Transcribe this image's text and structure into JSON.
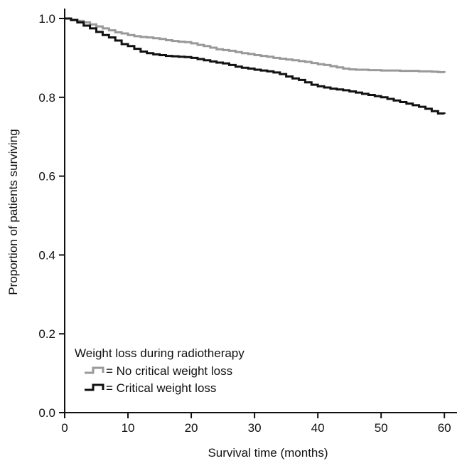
{
  "chart_data": {
    "type": "line",
    "title": "",
    "xlabel": "Survival time (months)",
    "ylabel": "Proportion of patients surviving",
    "xlim": [
      0,
      62
    ],
    "ylim": [
      0,
      1.0
    ],
    "x_ticks": [
      0,
      10,
      20,
      30,
      40,
      50,
      60
    ],
    "y_ticks": [
      0.0,
      0.2,
      0.4,
      0.6,
      0.8,
      1.0
    ],
    "x_tick_labels": [
      "0",
      "10",
      "20",
      "30",
      "40",
      "50",
      "60"
    ],
    "y_tick_labels": [
      "0.0",
      "0.2",
      "0.4",
      "0.6",
      "0.8",
      "1.0"
    ],
    "grid": false,
    "legend": {
      "title": "Weight loss during radiotherapy",
      "placement": "bottom-left"
    },
    "series": [
      {
        "name": "No critical weight loss",
        "legend_label": "= No critical weight loss",
        "color": "#999999",
        "step": true,
        "points": [
          [
            0,
            1.0
          ],
          [
            1,
            0.997
          ],
          [
            2,
            0.994
          ],
          [
            3,
            0.99
          ],
          [
            4,
            0.985
          ],
          [
            5,
            0.98
          ],
          [
            6,
            0.975
          ],
          [
            7,
            0.97
          ],
          [
            8,
            0.965
          ],
          [
            9,
            0.962
          ],
          [
            10,
            0.958
          ],
          [
            11,
            0.955
          ],
          [
            12,
            0.953
          ],
          [
            13,
            0.952
          ],
          [
            14,
            0.95
          ],
          [
            15,
            0.948
          ],
          [
            16,
            0.945
          ],
          [
            17,
            0.943
          ],
          [
            18,
            0.941
          ],
          [
            19,
            0.94
          ],
          [
            20,
            0.937
          ],
          [
            21,
            0.933
          ],
          [
            22,
            0.93
          ],
          [
            23,
            0.926
          ],
          [
            24,
            0.922
          ],
          [
            25,
            0.92
          ],
          [
            26,
            0.918
          ],
          [
            27,
            0.915
          ],
          [
            28,
            0.912
          ],
          [
            29,
            0.91
          ],
          [
            30,
            0.907
          ],
          [
            31,
            0.905
          ],
          [
            32,
            0.903
          ],
          [
            33,
            0.9
          ],
          [
            34,
            0.898
          ],
          [
            35,
            0.896
          ],
          [
            36,
            0.894
          ],
          [
            37,
            0.892
          ],
          [
            38,
            0.89
          ],
          [
            39,
            0.887
          ],
          [
            40,
            0.884
          ],
          [
            41,
            0.882
          ],
          [
            42,
            0.879
          ],
          [
            43,
            0.876
          ],
          [
            44,
            0.873
          ],
          [
            45,
            0.871
          ],
          [
            46,
            0.87
          ],
          [
            47,
            0.87
          ],
          [
            48,
            0.869
          ],
          [
            49,
            0.869
          ],
          [
            50,
            0.868
          ],
          [
            51,
            0.868
          ],
          [
            52,
            0.868
          ],
          [
            53,
            0.867
          ],
          [
            54,
            0.867
          ],
          [
            55,
            0.867
          ],
          [
            56,
            0.866
          ],
          [
            57,
            0.866
          ],
          [
            58,
            0.865
          ],
          [
            59,
            0.864
          ],
          [
            60,
            0.862
          ]
        ]
      },
      {
        "name": "Critical weight loss",
        "legend_label": "= Critical weight loss",
        "color": "#111111",
        "step": true,
        "points": [
          [
            0,
            1.0
          ],
          [
            1,
            0.996
          ],
          [
            2,
            0.99
          ],
          [
            3,
            0.982
          ],
          [
            4,
            0.975
          ],
          [
            5,
            0.966
          ],
          [
            6,
            0.958
          ],
          [
            7,
            0.952
          ],
          [
            8,
            0.944
          ],
          [
            9,
            0.935
          ],
          [
            10,
            0.93
          ],
          [
            11,
            0.923
          ],
          [
            12,
            0.916
          ],
          [
            13,
            0.912
          ],
          [
            14,
            0.909
          ],
          [
            15,
            0.907
          ],
          [
            16,
            0.905
          ],
          [
            17,
            0.904
          ],
          [
            18,
            0.903
          ],
          [
            19,
            0.902
          ],
          [
            20,
            0.9
          ],
          [
            21,
            0.897
          ],
          [
            22,
            0.894
          ],
          [
            23,
            0.891
          ],
          [
            24,
            0.888
          ],
          [
            25,
            0.886
          ],
          [
            26,
            0.882
          ],
          [
            27,
            0.878
          ],
          [
            28,
            0.875
          ],
          [
            29,
            0.873
          ],
          [
            30,
            0.87
          ],
          [
            31,
            0.868
          ],
          [
            32,
            0.866
          ],
          [
            33,
            0.863
          ],
          [
            34,
            0.859
          ],
          [
            35,
            0.853
          ],
          [
            36,
            0.848
          ],
          [
            37,
            0.844
          ],
          [
            38,
            0.838
          ],
          [
            39,
            0.832
          ],
          [
            40,
            0.828
          ],
          [
            41,
            0.825
          ],
          [
            42,
            0.822
          ],
          [
            43,
            0.82
          ],
          [
            44,
            0.818
          ],
          [
            45,
            0.815
          ],
          [
            46,
            0.812
          ],
          [
            47,
            0.809
          ],
          [
            48,
            0.806
          ],
          [
            49,
            0.803
          ],
          [
            50,
            0.8
          ],
          [
            51,
            0.796
          ],
          [
            52,
            0.792
          ],
          [
            53,
            0.788
          ],
          [
            54,
            0.784
          ],
          [
            55,
            0.78
          ],
          [
            56,
            0.776
          ],
          [
            57,
            0.771
          ],
          [
            58,
            0.765
          ],
          [
            59,
            0.759
          ],
          [
            60,
            0.758
          ]
        ]
      }
    ]
  }
}
